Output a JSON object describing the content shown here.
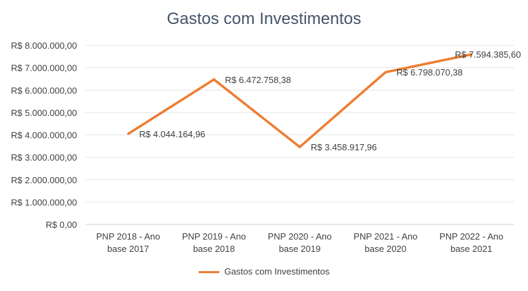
{
  "chart_data": {
    "type": "line",
    "title": "Gastos com Investimentos",
    "categories": [
      [
        "PNP 2018 - Ano",
        "base 2017"
      ],
      [
        "PNP 2019 - Ano",
        "base 2018"
      ],
      [
        "PNP 2020 - Ano",
        "base 2019"
      ],
      [
        "PNP 2021 - Ano",
        "base 2020"
      ],
      [
        "PNP 2022 - Ano",
        "base 2021"
      ]
    ],
    "series": [
      {
        "name": "Gastos com Investimentos",
        "color": "#ed7d31",
        "values": [
          4044164.96,
          6472758.38,
          3458917.96,
          6798070.38,
          7594385.6
        ],
        "labels": [
          "R$ 4.044.164,96",
          "R$ 6.472.758,38",
          "R$ 3.458.917,96",
          "R$ 6.798.070,38",
          "R$ 7.594.385,60"
        ]
      }
    ],
    "yticks": [
      "R$ 0,00",
      "R$ 1.000.000,00",
      "R$ 2.000.000,00",
      "R$ 3.000.000,00",
      "R$ 4.000.000,00",
      "R$ 5.000.000,00",
      "R$ 6.000.000,00",
      "R$ 7.000.000,00",
      "R$ 8.000.000,00"
    ],
    "ylim": [
      0,
      8000000
    ],
    "grid": true,
    "legend_position": "bottom"
  }
}
